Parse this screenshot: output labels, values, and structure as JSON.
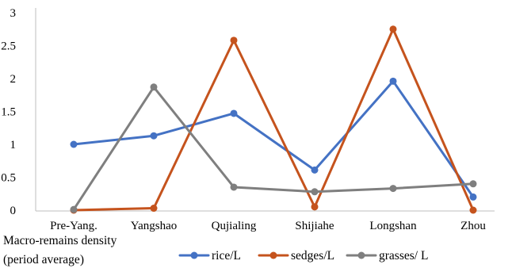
{
  "chart_data": {
    "type": "line",
    "categories": [
      "Pre-Yang.",
      "Yangshao",
      "Qujialing",
      "Shijiahe",
      "Longshan",
      "Zhou"
    ],
    "series": [
      {
        "name": "rice/L",
        "color": "#4472c4",
        "values": [
          1.0,
          1.13,
          1.47,
          0.61,
          1.96,
          0.2
        ]
      },
      {
        "name": "sedges/L",
        "color": "#c5531d",
        "values": [
          0.0,
          0.03,
          2.58,
          0.05,
          2.75,
          0.0
        ]
      },
      {
        "name": "grasses/ L",
        "color": "#7f7f7f",
        "values": [
          0.01,
          1.87,
          0.35,
          0.28,
          0.33,
          0.4
        ]
      }
    ],
    "y_ticks": [
      "0",
      "0.5",
      "1",
      "1.5",
      "2",
      "2.5",
      "3"
    ],
    "ylim": [
      0,
      3
    ],
    "grid": false,
    "xlabel_lines": [
      "Macro-remains density",
      "(period average)"
    ],
    "legend_position": "bottom"
  }
}
